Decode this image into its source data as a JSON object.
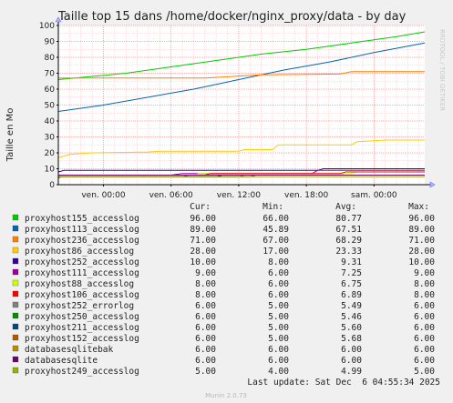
{
  "chart_data": {
    "type": "line",
    "title": "Taille top 15 dans /home/docker/nginx_proxy/data - by day",
    "ylabel": "Taille en Mo",
    "watermark": "RRDTOOL / TOBI OETIKER",
    "ylim": [
      0,
      100
    ],
    "yticks": [
      0,
      10,
      20,
      30,
      40,
      50,
      60,
      70,
      80,
      90,
      100
    ],
    "xlim_hours": [
      0,
      32.5
    ],
    "xticks": [
      {
        "label": "ven. 00:00",
        "hour": 4
      },
      {
        "label": "ven. 06:00",
        "hour": 10
      },
      {
        "label": "ven. 12:00",
        "hour": 16
      },
      {
        "label": "ven. 18:00",
        "hour": 22
      },
      {
        "label": "sam. 00:00",
        "hour": 28
      }
    ],
    "grid": true,
    "headers": {
      "cur": "Cur:",
      "min": "Min:",
      "avg": "Avg:",
      "max": "Max:"
    },
    "series": [
      {
        "name": "proxyhost155_accesslog",
        "color": "#00cc00",
        "cur": "96.00",
        "min": "66.00",
        "avg": "80.77",
        "max": "96.00",
        "points": [
          [
            0,
            66
          ],
          [
            3,
            68
          ],
          [
            6,
            70
          ],
          [
            10,
            74
          ],
          [
            14,
            78
          ],
          [
            18,
            82
          ],
          [
            22,
            85
          ],
          [
            26,
            89
          ],
          [
            30,
            93
          ],
          [
            32.5,
            96
          ]
        ]
      },
      {
        "name": "proxyhost113_accesslog",
        "color": "#0066b3",
        "cur": "89.00",
        "min": "45.89",
        "avg": "67.51",
        "max": "89.00",
        "points": [
          [
            0,
            46
          ],
          [
            4,
            50
          ],
          [
            8,
            55
          ],
          [
            12,
            60
          ],
          [
            16,
            66
          ],
          [
            20,
            72
          ],
          [
            24,
            77
          ],
          [
            28,
            83
          ],
          [
            32.5,
            89
          ]
        ]
      },
      {
        "name": "proxyhost236_accesslog",
        "color": "#ff8000",
        "cur": "71.00",
        "min": "67.00",
        "avg": "68.29",
        "max": "71.00",
        "points": [
          [
            0,
            67
          ],
          [
            6,
            67
          ],
          [
            13,
            67
          ],
          [
            18,
            69
          ],
          [
            25,
            69.5
          ],
          [
            26,
            71
          ],
          [
            32.5,
            71
          ]
        ]
      },
      {
        "name": "proxyhost86_accesslog",
        "color": "#ffcc00",
        "cur": "28.00",
        "min": "17.00",
        "avg": "23.33",
        "max": "28.00",
        "points": [
          [
            0,
            17
          ],
          [
            1,
            19
          ],
          [
            3,
            20
          ],
          [
            8,
            20.5
          ],
          [
            9,
            21
          ],
          [
            16,
            21
          ],
          [
            16.5,
            22
          ],
          [
            19,
            22
          ],
          [
            19.5,
            25
          ],
          [
            26,
            25
          ],
          [
            26.5,
            27
          ],
          [
            29,
            28
          ],
          [
            32.5,
            28
          ]
        ]
      },
      {
        "name": "proxyhost252_accesslog",
        "color": "#330099",
        "cur": "10.00",
        "min": "8.00",
        "avg": "9.31",
        "max": "10.00",
        "points": [
          [
            0,
            8
          ],
          [
            0.5,
            9
          ],
          [
            23,
            9
          ],
          [
            23.5,
            10
          ],
          [
            32.5,
            10
          ]
        ]
      },
      {
        "name": "proxyhost111_accesslog",
        "color": "#990099",
        "cur": "9.00",
        "min": "6.00",
        "avg": "7.25",
        "max": "9.00",
        "points": [
          [
            0,
            6
          ],
          [
            10,
            6
          ],
          [
            11,
            7
          ],
          [
            22.5,
            7
          ],
          [
            23,
            9
          ],
          [
            32.5,
            9
          ]
        ]
      },
      {
        "name": "proxyhost88_accesslog",
        "color": "#ccff00",
        "cur": "8.00",
        "min": "6.00",
        "avg": "6.75",
        "max": "8.00",
        "points": [
          [
            0,
            6
          ],
          [
            12,
            6
          ],
          [
            12.5,
            7
          ],
          [
            26,
            7
          ],
          [
            26.5,
            8
          ],
          [
            32.5,
            8
          ]
        ]
      },
      {
        "name": "proxyhost106_accesslog",
        "color": "#ff0000",
        "cur": "8.00",
        "min": "6.00",
        "avg": "6.89",
        "max": "8.00",
        "points": [
          [
            0,
            6
          ],
          [
            13,
            6
          ],
          [
            13.5,
            7
          ],
          [
            25,
            7
          ],
          [
            25.5,
            8
          ],
          [
            32.5,
            8
          ]
        ]
      },
      {
        "name": "proxyhost252_errorlog",
        "color": "#808080",
        "cur": "6.00",
        "min": "5.00",
        "avg": "5.49",
        "max": "6.00",
        "points": [
          [
            0,
            5
          ],
          [
            16,
            5
          ],
          [
            16.5,
            6
          ],
          [
            32.5,
            6
          ]
        ]
      },
      {
        "name": "proxyhost250_accesslog",
        "color": "#008f00",
        "cur": "6.00",
        "min": "5.00",
        "avg": "5.46",
        "max": "6.00",
        "points": [
          [
            0,
            5
          ],
          [
            17,
            5
          ],
          [
            17.5,
            6
          ],
          [
            32.5,
            6
          ]
        ]
      },
      {
        "name": "proxyhost211_accesslog",
        "color": "#00487d",
        "cur": "6.00",
        "min": "5.00",
        "avg": "5.60",
        "max": "6.00",
        "points": [
          [
            0,
            5
          ],
          [
            14,
            5
          ],
          [
            14.5,
            6
          ],
          [
            32.5,
            6
          ]
        ]
      },
      {
        "name": "proxyhost152_accesslog",
        "color": "#b35a00",
        "cur": "6.00",
        "min": "5.00",
        "avg": "5.68",
        "max": "6.00",
        "points": [
          [
            0,
            5
          ],
          [
            11,
            5
          ],
          [
            11.5,
            6
          ],
          [
            32.5,
            6
          ]
        ]
      },
      {
        "name": "databasesqlitebak",
        "color": "#b38f00",
        "cur": "6.00",
        "min": "6.00",
        "avg": "6.00",
        "max": "6.00",
        "points": [
          [
            0,
            6
          ],
          [
            32.5,
            6
          ]
        ]
      },
      {
        "name": "databasesqlite",
        "color": "#6b006b",
        "cur": "6.00",
        "min": "6.00",
        "avg": "6.00",
        "max": "6.00",
        "points": [
          [
            0,
            6
          ],
          [
            32.5,
            6
          ]
        ]
      },
      {
        "name": "proxyhost249_accesslog",
        "color": "#8fb300",
        "cur": "5.00",
        "min": "4.00",
        "avg": "4.99",
        "max": "5.00",
        "points": [
          [
            0,
            4
          ],
          [
            0.3,
            5
          ],
          [
            32.5,
            5
          ]
        ]
      }
    ],
    "last_update": "Last update: Sat Dec  6 04:55:34 2025",
    "footer": "Munin 2.0.73"
  }
}
